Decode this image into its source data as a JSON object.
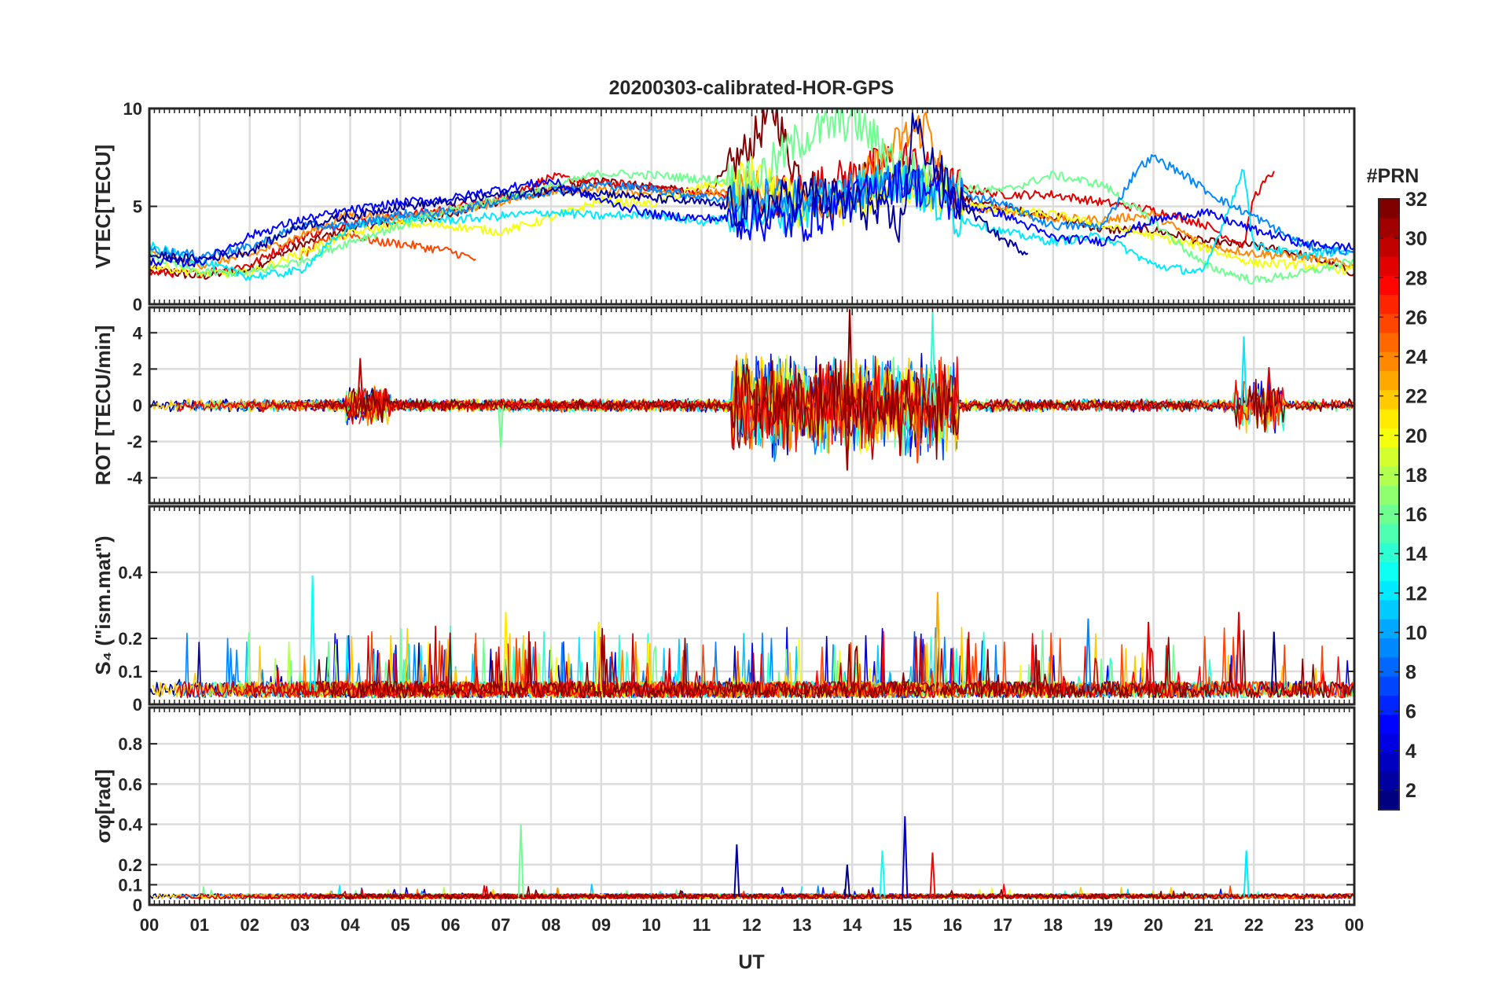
{
  "chart_data": {
    "title": "20200303-calibrated-HOR-GPS",
    "type": "line",
    "x": {
      "label": "UT",
      "range": [
        0,
        24
      ],
      "unit": "hours",
      "tick_labels": [
        "00",
        "01",
        "02",
        "03",
        "04",
        "05",
        "06",
        "07",
        "08",
        "09",
        "10",
        "11",
        "12",
        "13",
        "14",
        "15",
        "16",
        "17",
        "18",
        "19",
        "20",
        "21",
        "22",
        "23",
        "00"
      ]
    },
    "colorbar": {
      "title": "#PRN",
      "range": [
        1,
        32
      ],
      "tick_labels": [
        "2",
        "4",
        "6",
        "8",
        "10",
        "12",
        "14",
        "16",
        "18",
        "20",
        "22",
        "24",
        "26",
        "28",
        "30",
        "32"
      ],
      "ticks": [
        2,
        4,
        6,
        8,
        10,
        12,
        14,
        16,
        18,
        20,
        22,
        24,
        26,
        28,
        30,
        32
      ]
    },
    "panels": [
      {
        "name": "vtec",
        "ylabel": "VTEC[TECU]",
        "ylim": [
          0,
          10
        ],
        "yticks": [
          0,
          5,
          10
        ],
        "ytick_labels": [
          "0",
          "5",
          "10"
        ],
        "series": [
          {
            "name": "PRN 32",
            "prn": 32,
            "x": [
              0,
              1,
              2,
              3,
              4,
              5,
              6,
              7,
              8,
              9,
              10,
              11,
              11.6,
              12,
              12.3,
              12.5,
              12.7,
              13,
              13.5,
              14,
              15,
              16,
              17,
              18,
              19,
              20,
              21,
              22,
              23,
              24
            ],
            "y": [
              1.8,
              1.4,
              1.8,
              3.0,
              3.9,
              4.2,
              4.6,
              5.3,
              5.8,
              6.3,
              6.0,
              5.6,
              7.0,
              8.2,
              9.5,
              9.8,
              7.8,
              6.4,
              5.5,
              6.2,
              6.5,
              5.5,
              4.9,
              4.5,
              3.8,
              3.8,
              3.2,
              3.0,
              2.5,
              1.6
            ]
          },
          {
            "name": "PRN 29",
            "prn": 29,
            "x": [
              0,
              1,
              2,
              3,
              4,
              5,
              6,
              7,
              8,
              9,
              10,
              11,
              12,
              13,
              14,
              15,
              16,
              17,
              18,
              19,
              20,
              21,
              21.8,
              22,
              22.4
            ],
            "y": [
              1.6,
              1.6,
              2.0,
              3.4,
              4.2,
              4.5,
              4.9,
              5.4,
              6.5,
              6.2,
              6.0,
              5.7,
              5.4,
              5.8,
              6.5,
              7.5,
              6.0,
              5.6,
              5.6,
              5.2,
              4.8,
              4.1,
              3.0,
              5.5,
              6.8
            ]
          },
          {
            "name": "PRN 26",
            "prn": 26,
            "x": [
              3,
              3.5,
              4,
              4.5,
              5,
              5.5,
              6,
              6.5
            ],
            "y": [
              2.4,
              3.3,
              3.6,
              3.2,
              3.1,
              2.9,
              2.7,
              2.3
            ]
          },
          {
            "name": "PRN 24",
            "prn": 24,
            "x": [
              0,
              1,
              2,
              3,
              4,
              5,
              6,
              7,
              8,
              9,
              10,
              11,
              12,
              13,
              14,
              15,
              15.5,
              16,
              17,
              18,
              19,
              20,
              21,
              22,
              23,
              24
            ],
            "y": [
              2.6,
              2.0,
              2.5,
              3.5,
              4.6,
              4.4,
              4.8,
              5.2,
              5.8,
              5.9,
              5.7,
              5.6,
              5.9,
              5.2,
              5.6,
              8.4,
              9.2,
              5.0,
              4.8,
              4.4,
              4.3,
              4.6,
              3.0,
              2.6,
              2.4,
              2.0
            ]
          },
          {
            "name": "PRN 20",
            "prn": 20,
            "x": [
              0,
              1,
              2,
              3,
              4,
              5,
              6,
              7,
              8,
              9,
              10,
              11,
              12,
              13,
              14,
              15,
              16,
              17,
              18,
              19,
              20,
              21,
              22,
              23,
              24
            ],
            "y": [
              2.0,
              1.6,
              1.6,
              2.6,
              3.6,
              4.1,
              4.0,
              3.7,
              4.4,
              5.3,
              5.1,
              6.0,
              6.5,
              4.9,
              5.1,
              6.2,
              5.2,
              4.8,
              4.6,
              4.0,
              3.5,
              2.9,
              2.1,
              2.0,
              1.7
            ]
          },
          {
            "name": "PRN 16",
            "prn": 16,
            "x": [
              0,
              1,
              2,
              3,
              4,
              5,
              6,
              7,
              8,
              9,
              10,
              11,
              12,
              13,
              14,
              15,
              16,
              17,
              18,
              19,
              20,
              21,
              22,
              23,
              24
            ],
            "y": [
              2.5,
              1.6,
              1.6,
              2.2,
              3.2,
              4.0,
              4.8,
              5.4,
              6.0,
              6.7,
              6.6,
              6.4,
              6.2,
              8.5,
              9.5,
              7.0,
              6.0,
              5.8,
              6.6,
              6.1,
              4.2,
              2.0,
              1.2,
              1.6,
              2.2
            ]
          },
          {
            "name": "PRN 12",
            "prn": 12,
            "x": [
              0,
              1,
              2,
              3,
              4,
              5,
              6,
              7,
              8,
              9,
              10,
              11,
              12,
              13,
              14,
              15,
              16,
              17,
              18,
              19,
              20,
              21,
              21.8,
              22,
              23,
              24
            ],
            "y": [
              3.0,
              2.2,
              1.4,
              1.7,
              4.0,
              4.4,
              4.3,
              4.5,
              4.7,
              4.5,
              4.6,
              4.2,
              4.6,
              4.8,
              6.0,
              6.3,
              4.5,
              3.7,
              3.2,
              3.5,
              2.0,
              1.6,
              6.9,
              3.0,
              2.5,
              2.8
            ]
          },
          {
            "name": "PRN 9",
            "prn": 9,
            "x": [
              0,
              1,
              2,
              3,
              4,
              5,
              6,
              7,
              8,
              9,
              10,
              11,
              12,
              13,
              14,
              15,
              16,
              17,
              18,
              19,
              19.7,
              20,
              20.5,
              21,
              21.5,
              22,
              23,
              24
            ],
            "y": [
              2.8,
              2.5,
              2.9,
              4.0,
              4.0,
              4.6,
              4.7,
              5.3,
              5.8,
              6.1,
              5.9,
              5.5,
              5.2,
              5.5,
              5.7,
              6.2,
              5.8,
              5.1,
              4.0,
              4.0,
              7.0,
              7.5,
              6.8,
              5.9,
              5.1,
              4.5,
              3.0,
              2.6
            ]
          },
          {
            "name": "PRN 5",
            "prn": 5,
            "x": [
              0,
              1,
              2,
              3,
              4,
              5,
              6,
              7,
              8,
              9,
              10,
              11,
              12,
              13,
              14,
              15,
              16,
              17,
              18,
              19,
              20,
              21,
              22,
              23,
              24
            ],
            "y": [
              2.2,
              2.1,
              3.5,
              4.3,
              4.8,
              5.2,
              5.4,
              5.9,
              6.3,
              5.3,
              4.6,
              4.4,
              4.3,
              4.2,
              5.3,
              6.4,
              5.2,
              4.6,
              3.4,
              3.2,
              4.3,
              4.7,
              3.8,
              3.1,
              2.9
            ]
          },
          {
            "name": "PRN 2",
            "prn": 2,
            "x": [
              0,
              1,
              2,
              3,
              4,
              5,
              6,
              7,
              8,
              9,
              10,
              11,
              12,
              13,
              14,
              15,
              15.2,
              16,
              17,
              17.5
            ],
            "y": [
              2.5,
              2.3,
              2.7,
              4.0,
              4.5,
              5.0,
              5.2,
              5.6,
              5.8,
              5.7,
              5.4,
              5.2,
              4.8,
              5.6,
              5.2,
              4.0,
              9.2,
              5.5,
              3.3,
              2.6
            ]
          }
        ]
      },
      {
        "name": "rot",
        "ylabel": "ROT [TECU/min]",
        "ylim": [
          -5.4,
          5.4
        ],
        "yticks": [
          -4,
          -2,
          0,
          2,
          4
        ],
        "ytick_labels": [
          "-4",
          "-2",
          "0",
          "2",
          "4"
        ],
        "summary": "ROT fluctuates around 0 (about ±0.4 TECU/min) most of the day; strong bursts of about ±4-5 TECU/min between 11.6 and 16 UT, peaks near 14 and 15.6 UT; smaller bursts near 4.2 UT (~2.6) and 21.8-22.5 UT (~3.8)."
      },
      {
        "name": "s4",
        "ylabel": "S₄ (\"ism.mat\")",
        "ylim": [
          0,
          0.6
        ],
        "yticks": [
          0,
          0.1,
          0.2,
          0.4
        ],
        "ytick_labels": [
          "0",
          "0.1",
          "0.2",
          "0.4"
        ],
        "summary": "S4 mostly 0.02-0.1 with frequent spikes to 0.15-0.28; highest spike about 0.39 near 03:15 UT and 0.34 near 15:45 UT."
      },
      {
        "name": "sigma_phi",
        "ylabel": "σφ[rad]",
        "ylim": [
          0,
          0.98
        ],
        "yticks": [
          0,
          0.1,
          0.2,
          0.4,
          0.6,
          0.8
        ],
        "ytick_labels": [
          "0",
          "0.1",
          "0.2",
          "0.4",
          "0.6",
          "0.8"
        ],
        "summary": "Sigma-phi mostly about 0.03-0.06 rad; isolated spikes to 0.4 at 07:25 UT, 0.3 near 11:40 UT, 0.44 near 15:00 UT and 0.27 near 21:50 UT."
      }
    ]
  }
}
